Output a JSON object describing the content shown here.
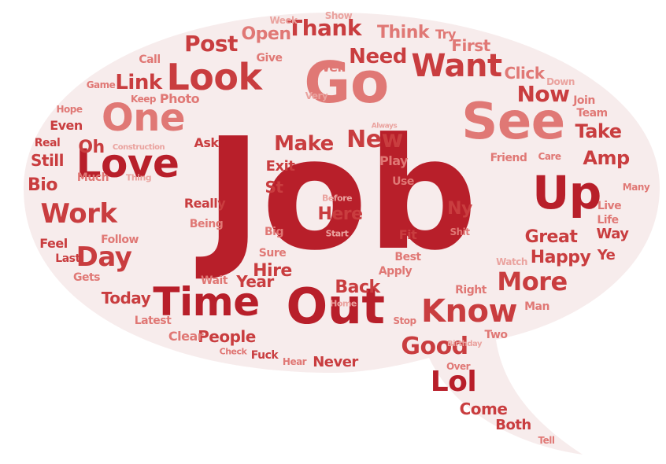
{
  "colors": {
    "bubble": "#f7ecec",
    "dark": "#b81f2a",
    "mid": "#c93d3f",
    "light": "#e07875",
    "pale": "#eaa39f"
  },
  "words": {
    "job": "Job",
    "out": "Out",
    "go": "Go",
    "see": "See",
    "love": "Love",
    "one": "One",
    "look": "Look",
    "up": "Up",
    "time": "Time",
    "want": "Want",
    "know": "Know",
    "more": "More",
    "work": "Work",
    "day": "Day",
    "thank": "Thank",
    "post": "Post",
    "new": "New",
    "make": "Make",
    "now": "Now",
    "need": "Need",
    "good": "Good",
    "lol": "Lol",
    "link": "Link",
    "take": "Take",
    "great": "Great",
    "happy": "Happy",
    "back": "Back",
    "here": "Here",
    "open": "Open",
    "think": "Think",
    "first": "First",
    "click": "Click",
    "bio": "Bio",
    "oh": "Oh",
    "still": "Still",
    "amp": "Amp",
    "ny": "Ny",
    "hire": "Hire",
    "year": "Year",
    "today": "Today",
    "people": "People",
    "never": "Never",
    "come": "Come",
    "both": "Both",
    "tell": "Tell",
    "call": "Call",
    "give": "Give",
    "well": "Well",
    "week": "Week",
    "show": "Show",
    "try": "Try",
    "game": "Game",
    "photo": "Photo",
    "very": "Very",
    "keep": "Keep",
    "hope": "Hope",
    "even": "Even",
    "real": "Real",
    "construction": "Construction",
    "ask": "Ask",
    "exit": "Exit",
    "st": "St",
    "play": "Play",
    "use": "Use",
    "much": "Much",
    "thing": "Thing",
    "really": "Really",
    "being": "Being",
    "before": "Before",
    "start": "Start",
    "big": "Big",
    "sure": "Sure",
    "fit": "Fit",
    "best": "Best",
    "apply": "Apply",
    "feel": "Feel",
    "follow": "Follow",
    "last": "Last",
    "gets": "Gets",
    "wait": "Wait",
    "latest": "Latest",
    "clear": "Clear",
    "check": "Check",
    "fuck": "Fuck",
    "hear": "Hear",
    "home": "Home",
    "stop": "Stop",
    "birthday": "Birthday",
    "two": "Two",
    "over": "Over",
    "right": "Right",
    "watch": "Watch",
    "man": "Man",
    "shit": "Shit",
    "way": "Way",
    "ye": "Ye",
    "live": "Live",
    "life": "Life",
    "many": "Many",
    "friend": "Friend",
    "care": "Care",
    "team": "Team",
    "join": "Join",
    "down": "Down",
    "always": "Always"
  }
}
